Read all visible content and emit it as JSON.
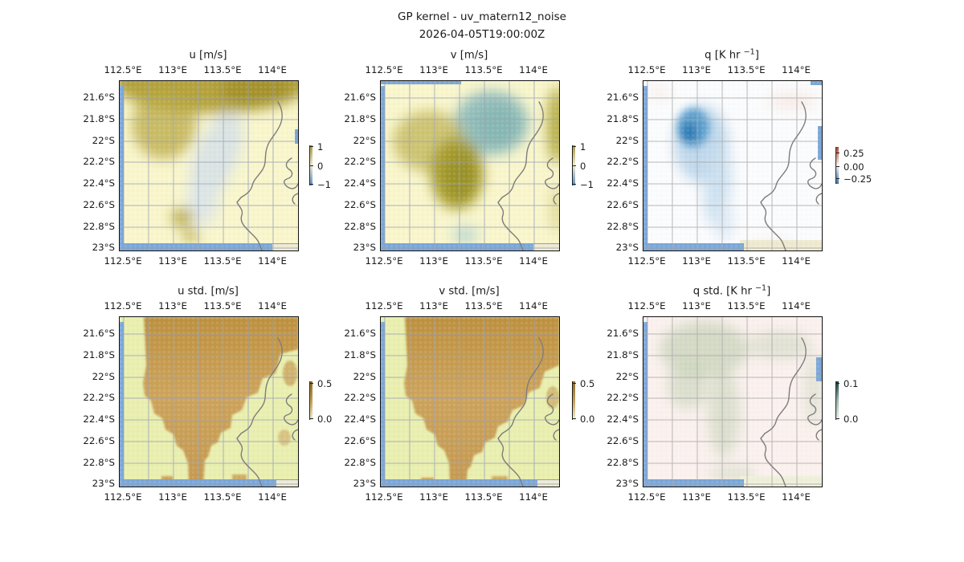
{
  "figure": {
    "suptitle": "GP kernel - uv_matern12_noise",
    "timestamp": "2026-04-05T19:00:00Z"
  },
  "axis": {
    "x_ticks": [
      "112.5°E",
      "113°E",
      "113.5°E",
      "114°E"
    ],
    "y_ticks": [
      "21.6°S",
      "21.8°S",
      "22°S",
      "22.2°S",
      "22.4°S",
      "22.6°S",
      "22.8°S",
      "23°S"
    ]
  },
  "panels": [
    {
      "key": "u",
      "title_pre": "u [m/s]",
      "title_sup": "",
      "title_post": "",
      "cbar_ticks": [
        "1",
        "0",
        "−1"
      ],
      "cbar_colors": [
        "#a79b3a",
        "#eee9d0",
        "#5f8fc0"
      ]
    },
    {
      "key": "v",
      "title_pre": "v [m/s]",
      "title_sup": "",
      "title_post": "",
      "cbar_ticks": [
        "1",
        "0",
        "−1"
      ],
      "cbar_colors": [
        "#a79b3a",
        "#eee9d0",
        "#5f8fc0"
      ]
    },
    {
      "key": "q",
      "title_pre": "q [K hr ",
      "title_sup": "−1",
      "title_post": "]",
      "cbar_ticks": [
        "0.25",
        "0.00",
        "−0.25"
      ],
      "cbar_colors": [
        "#b5432f",
        "#f6f4f2",
        "#3a74ae"
      ]
    },
    {
      "key": "ustd",
      "title_pre": "u std. [m/s]",
      "title_sup": "",
      "title_post": "",
      "cbar_ticks": [
        "0.5",
        "0.0"
      ],
      "cbar_colors": [
        "#8a6a28",
        "#c79c52",
        "#efecd2"
      ]
    },
    {
      "key": "vstd",
      "title_pre": "v std. [m/s]",
      "title_sup": "",
      "title_post": "",
      "cbar_ticks": [
        "0.5",
        "0.0"
      ],
      "cbar_colors": [
        "#8a6a28",
        "#c79c52",
        "#efecd2"
      ]
    },
    {
      "key": "qstd",
      "title_pre": "q std. [K hr ",
      "title_sup": "−1",
      "title_post": "]",
      "cbar_ticks": [
        "0.1",
        "0.0"
      ],
      "cbar_colors": [
        "#16413d",
        "#9fb9ae",
        "#e8efe6"
      ]
    }
  ],
  "colors": {
    "ocean": "#7ba7d8",
    "land_pale_yellow": "#f9f6cc",
    "olive": "#b1a03c",
    "teal": "#8fbfbc",
    "blue_plume": "#4a97c8",
    "std_base_green": "#e9efaf",
    "std_brown": "#c59a52",
    "qstd_base_pink": "#fbf1ee",
    "qstd_sage": "#c7d2b8",
    "grid_line": "#9aa3b5",
    "coastline": "#7d7d7d"
  },
  "chart_data": {
    "type": "heatmap",
    "title": "GP kernel - uv_matern12_noise",
    "subtitle": "2026-04-05T19:00:00Z",
    "x_axis": {
      "ticks": [
        "112.5°E",
        "113°E",
        "113.5°E",
        "114°E"
      ],
      "range_deg_east": [
        112.4,
        114.15
      ],
      "grid_interval_deg": 0.25
    },
    "y_axis": {
      "ticks": [
        "21.6°S",
        "21.8°S",
        "22°S",
        "22.2°S",
        "22.4°S",
        "22.6°S",
        "22.8°S",
        "23°S"
      ],
      "range_deg_south": [
        21.45,
        23.05
      ],
      "grid_interval_deg": 0.2
    },
    "layout": {
      "rows": 2,
      "cols": 3,
      "grid": true,
      "projection": "lat/lon map, Exmouth Gulf / Cape Range coastline (Western Australia) shown in gray"
    },
    "panels": [
      {
        "title": "u [m/s]",
        "colorbar_tick_values": [
          1,
          0,
          -1
        ],
        "features": "positive (olive-yellow) band ~0.5-1 across the north, strongest 113.3-114°E near 21.6°S; weak negative (pale blue-gray) diagonal band from NE to center-south ~113.3°E 22.4°S; small olive patches near 113.4°E 22.9°S; background near 0 (pale yellow); ocean-blue border strips on west and south edges"
      },
      {
        "title": "v [m/s]",
        "colorbar_tick_values": [
          1,
          0,
          -1
        ],
        "features": "negative (teal) blob ~-0.7 centered 113.5°E 21.8°S; positive (olive) blob ~0.8 centered 113.1°E 22.2°S; olive strip on east edge near 21.7-22°S; small teal patch 113.2°E 22.9°S; background near 0"
      },
      {
        "title": "q [K hr −1]",
        "colorbar_tick_values": [
          0.25,
          0.0,
          -0.25
        ],
        "features": "negative (blue) plume, core ~-0.35 at 113°E 22.2°S, tail extending south to 23°S; faint positive (pink) patches NE corner and south edge; background near 0 (white)"
      },
      {
        "title": "u std. [m/s]",
        "colorbar_tick_values": [
          0.5,
          0.0
        ],
        "features": "high std (brown ~0.5) region over northern half and a plume down the middle to the south edge; low std (pale yellow-green ~0.1) elsewhere including east of coastline"
      },
      {
        "title": "v std. [m/s]",
        "colorbar_tick_values": [
          0.5,
          0.0
        ],
        "features": "same pattern as u std.: brown high-std region over north and central plume, slightly wider on the northeast side"
      },
      {
        "title": "q std. [K hr −1]",
        "colorbar_tick_values": [
          0.1,
          0.0
        ],
        "features": "very low values: faint sage-green plume over northwest and center on pale pink background"
      }
    ]
  }
}
